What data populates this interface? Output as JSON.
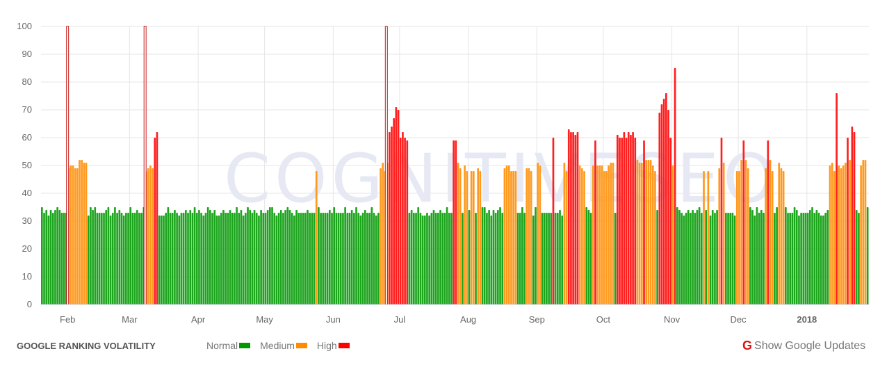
{
  "chart_data": {
    "type": "bar",
    "title": "GOOGLE RANKING VOLATILITY",
    "ylim": [
      0,
      100
    ],
    "y_ticks": [
      0,
      10,
      20,
      30,
      40,
      50,
      60,
      70,
      80,
      90,
      100
    ],
    "x_ticks": [
      {
        "label": "Feb",
        "date": "2017-02-01"
      },
      {
        "label": "Mar",
        "date": "2017-03-01"
      },
      {
        "label": "Apr",
        "date": "2017-04-01"
      },
      {
        "label": "May",
        "date": "2017-05-01"
      },
      {
        "label": "Jun",
        "date": "2017-06-01"
      },
      {
        "label": "Jul",
        "date": "2017-07-01"
      },
      {
        "label": "Aug",
        "date": "2017-08-01"
      },
      {
        "label": "Sep",
        "date": "2017-09-01"
      },
      {
        "label": "Oct",
        "date": "2017-10-01"
      },
      {
        "label": "Nov",
        "date": "2017-11-01"
      },
      {
        "label": "Dec",
        "date": "2017-12-01"
      },
      {
        "label": "2018",
        "date": "2018-01-01",
        "bold": true
      }
    ],
    "grid": true,
    "legend": [
      {
        "name": "Normal",
        "color": "#009900"
      },
      {
        "name": "Medium",
        "color": "#ff8c00"
      },
      {
        "name": "High",
        "color": "#ff0000"
      }
    ],
    "bar_colors": {
      "Normal": "#1ea51e",
      "Medium": "#ff9a1f",
      "High": "#ff1f1f"
    },
    "google_updates": [
      "2017-02-01",
      "2017-03-08",
      "2017-06-25"
    ],
    "daily": [
      {
        "from": "2017-01-20",
        "to": "2017-01-31",
        "values": [
          35,
          33,
          34,
          32,
          34,
          33,
          34,
          35,
          34,
          33,
          33,
          33
        ]
      },
      {
        "from": "2017-02-01",
        "to": "2017-02-28",
        "values": [
          49,
          50,
          50,
          49,
          49,
          52,
          52,
          51,
          51,
          32,
          35,
          34,
          35,
          33,
          33,
          33,
          33,
          34,
          35,
          32,
          33,
          35,
          33,
          34,
          33,
          32,
          33,
          33
        ]
      },
      {
        "from": "2017-03-01",
        "to": "2017-03-31",
        "values": [
          35,
          33,
          33,
          34,
          33,
          33,
          35,
          48,
          49,
          50,
          49,
          60,
          62,
          32,
          32,
          32,
          33,
          35,
          33,
          33,
          34,
          33,
          32,
          33,
          33,
          34,
          33,
          34,
          33,
          35,
          33
        ]
      },
      {
        "from": "2017-04-01",
        "to": "2017-04-30",
        "values": [
          34,
          33,
          32,
          33,
          35,
          34,
          33,
          34,
          32,
          32,
          33,
          34,
          33,
          33,
          34,
          33,
          33,
          35,
          33,
          34,
          32,
          33,
          35,
          34,
          33,
          34,
          33,
          32,
          34,
          33
        ]
      },
      {
        "from": "2017-05-01",
        "to": "2017-05-31",
        "values": [
          33,
          34,
          35,
          35,
          33,
          32,
          33,
          34,
          33,
          34,
          35,
          34,
          33,
          32,
          34,
          33,
          33,
          33,
          33,
          34,
          33,
          33,
          33,
          48,
          35,
          33,
          33,
          33,
          33,
          34,
          33
        ]
      },
      {
        "from": "2017-06-01",
        "to": "2017-06-30",
        "values": [
          35,
          33,
          33,
          33,
          33,
          35,
          33,
          33,
          34,
          33,
          35,
          33,
          32,
          33,
          34,
          33,
          33,
          35,
          33,
          32,
          33,
          49,
          51,
          48,
          51,
          62,
          64,
          67,
          71,
          70
        ]
      },
      {
        "from": "2017-07-01",
        "to": "2017-07-31",
        "values": [
          60,
          62,
          60,
          59,
          33,
          34,
          33,
          33,
          35,
          33,
          32,
          32,
          33,
          32,
          33,
          34,
          33,
          33,
          34,
          33,
          33,
          35,
          33,
          33,
          59,
          59,
          51,
          49,
          33,
          50,
          48
        ]
      },
      {
        "from": "2017-08-01",
        "to": "2017-08-31",
        "values": [
          34,
          48,
          48,
          33,
          49,
          48,
          35,
          35,
          33,
          34,
          32,
          34,
          33,
          34,
          35,
          33,
          49,
          50,
          50,
          48,
          48,
          48,
          33,
          33,
          35,
          33,
          49,
          49,
          48,
          32,
          35
        ]
      },
      {
        "from": "2017-09-01",
        "to": "2017-09-30",
        "values": [
          51,
          50,
          33,
          33,
          33,
          33,
          33,
          60,
          33,
          33,
          34,
          32,
          51,
          48,
          63,
          62,
          62,
          61,
          62,
          50,
          49,
          48,
          35,
          34,
          33,
          50,
          59,
          50,
          50,
          50
        ]
      },
      {
        "from": "2017-10-01",
        "to": "2017-10-31",
        "values": [
          48,
          48,
          50,
          51,
          51,
          33,
          61,
          60,
          60,
          62,
          60,
          62,
          61,
          62,
          60,
          52,
          51,
          51,
          59,
          52,
          52,
          52,
          50,
          48,
          34,
          69,
          72,
          74,
          76,
          70,
          60
        ]
      },
      {
        "from": "2017-11-01",
        "to": "2017-11-30",
        "values": [
          50,
          85,
          35,
          34,
          33,
          32,
          33,
          34,
          33,
          34,
          33,
          34,
          35,
          33,
          48,
          34,
          48,
          32,
          34,
          33,
          34,
          49,
          60,
          51,
          33,
          33,
          33,
          33,
          32,
          48
        ]
      },
      {
        "from": "2017-12-01",
        "to": "2017-12-31",
        "values": [
          48,
          52,
          59,
          52,
          49,
          35,
          34,
          32,
          35,
          33,
          34,
          33,
          49,
          59,
          52,
          48,
          33,
          35,
          51,
          49,
          48,
          35,
          33,
          33,
          33,
          35,
          34,
          32,
          33,
          33,
          33
        ]
      },
      {
        "from": "2018-01-01",
        "to": "2018-01-28",
        "values": [
          33,
          34,
          35,
          33,
          34,
          33,
          32,
          32,
          33,
          34,
          50,
          51,
          48,
          76,
          50,
          49,
          50,
          51,
          60,
          52,
          64,
          62,
          34,
          33,
          50,
          52,
          52,
          35
        ]
      }
    ],
    "watermark": "COGNITIVESEO"
  },
  "footer": {
    "title": "GOOGLE RANKING VOLATILITY",
    "legend": [
      "Normal",
      "Medium",
      "High"
    ],
    "show_updates_label": "Show Google Updates"
  }
}
